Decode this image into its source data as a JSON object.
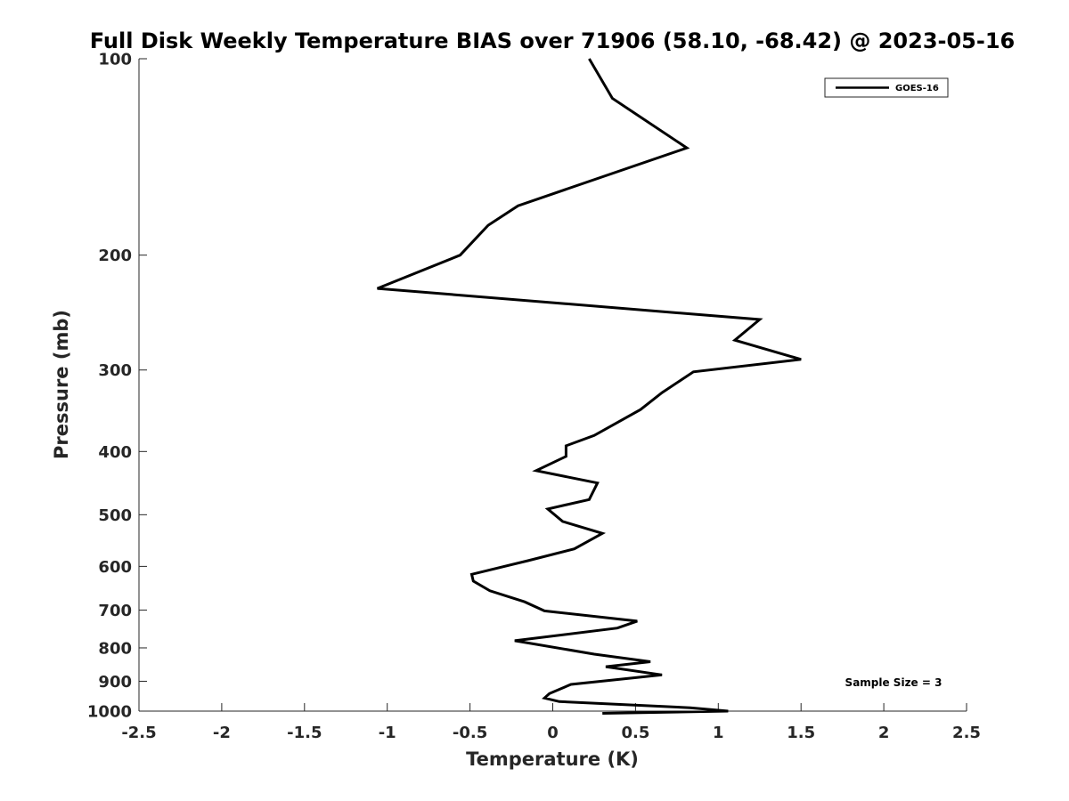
{
  "chart_data": {
    "type": "line",
    "title": "Full Disk Weekly Temperature BIAS over 71906 (58.10, -68.42) @ 2023-05-16",
    "xlabel": "Temperature (K)",
    "ylabel": "Pressure (mb)",
    "xlim": [
      -2.5,
      2.5
    ],
    "ylim": [
      100,
      1000
    ],
    "y_scale": "log",
    "y_reversed": true,
    "grid": false,
    "legend_position": "top-right",
    "x_ticks": [
      -2.5,
      -2,
      -1.5,
      -1,
      -0.5,
      0,
      0.5,
      1,
      1.5,
      2,
      2.5
    ],
    "x_tick_labels": [
      "-2.5",
      "-2",
      "-1.5",
      "-1",
      "-0.5",
      "0",
      "0.5",
      "1",
      "1.5",
      "2",
      "2.5"
    ],
    "y_ticks": [
      100,
      200,
      300,
      400,
      500,
      600,
      700,
      800,
      900,
      1000
    ],
    "y_tick_labels": [
      "100",
      "200",
      "300",
      "400",
      "500",
      "600",
      "700",
      "800",
      "900",
      "1000"
    ],
    "annotation": "Sample Size = 3",
    "series": [
      {
        "name": "GOES-16",
        "color": "#000000",
        "x": [
          0.22,
          0.36,
          0.81,
          -0.21,
          -0.39,
          -0.56,
          -1.06,
          1.25,
          1.1,
          1.5,
          0.85,
          0.66,
          0.53,
          0.25,
          0.08,
          0.08,
          -0.1,
          0.27,
          0.22,
          -0.03,
          0.06,
          0.3,
          0.13,
          -0.15,
          -0.49,
          -0.48,
          -0.38,
          -0.17,
          -0.05,
          0.51,
          0.39,
          -0.23,
          0.25,
          0.59,
          0.32,
          0.66,
          0.11,
          -0.02,
          -0.05,
          0.04,
          0.83,
          1.06,
          0.3
        ],
        "y": [
          100,
          115,
          137,
          168,
          180,
          200,
          225,
          251,
          270,
          289,
          302,
          325,
          345,
          378,
          392,
          407,
          428,
          447,
          474,
          490,
          512,
          534,
          564,
          588,
          617,
          632,
          654,
          680,
          702,
          728,
          746,
          780,
          818,
          840,
          855,
          880,
          910,
          940,
          955,
          967,
          988,
          1000,
          1008
        ]
      }
    ]
  }
}
